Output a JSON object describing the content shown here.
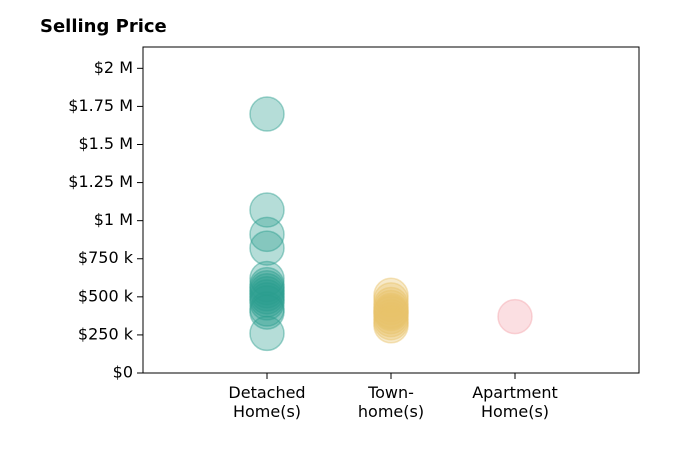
{
  "chart_data": {
    "type": "scatter",
    "title": "Selling Price",
    "xlabel": "",
    "ylabel": "",
    "categories": [
      "Detached\nHome(s)",
      "Town-\nhome(s)",
      "Apartment\nHome(s)"
    ],
    "ylim": [
      0,
      2140000
    ],
    "xlim": [
      -1,
      3
    ],
    "y_ticks": [
      {
        "value": 0,
        "label": "$0"
      },
      {
        "value": 250000,
        "label": "$250 k"
      },
      {
        "value": 500000,
        "label": "$500 k"
      },
      {
        "value": 750000,
        "label": "$750 k"
      },
      {
        "value": 1000000,
        "label": "$1 M"
      },
      {
        "value": 1250000,
        "label": "$1.25 M"
      },
      {
        "value": 1500000,
        "label": "$1.5 M"
      },
      {
        "value": 1750000,
        "label": "$1.75 M"
      },
      {
        "value": 2000000,
        "label": "$2 M"
      }
    ],
    "grid": false,
    "series": [
      {
        "color": "#2a9d8f",
        "category_index": 0,
        "values": [
          1700000,
          1070000,
          910000,
          820000,
          620000,
          580000,
          560000,
          540000,
          520000,
          500000,
          480000,
          460000,
          420000,
          400000,
          260000
        ]
      },
      {
        "color": "#e9c46a",
        "category_index": 1,
        "values": [
          510000,
          480000,
          450000,
          430000,
          410000,
          400000,
          390000,
          370000,
          350000,
          330000,
          310000
        ]
      },
      {
        "color": "#f4a3ab",
        "category_index": 2,
        "values": [
          370000
        ]
      }
    ]
  }
}
